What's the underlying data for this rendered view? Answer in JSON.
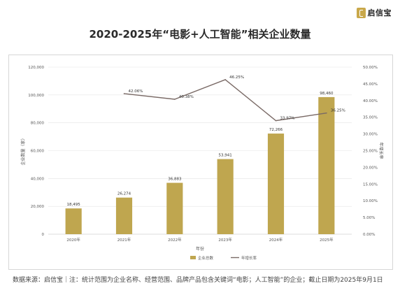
{
  "brand": {
    "name": "启信宝",
    "logo_icon": "qixinbao-logo-icon"
  },
  "title": "2020-2025年“电影+人工智能”相关企业数量",
  "footnote": "数据来源：启信宝｜注：统计范围为企业名称、经营范围、品牌产品包含关键词“电影；人工智能”的企业；截止日期为2025年9月1日",
  "chart_data": {
    "type": "bar",
    "categories": [
      "2020年",
      "2021年",
      "2022年",
      "2023年",
      "2024年",
      "2025年"
    ],
    "series": [
      {
        "name": "企业总数",
        "type": "bar",
        "axis": "left",
        "values": [
          18495,
          26274,
          36883,
          53941,
          72266,
          98460
        ],
        "labels": [
          "18,495",
          "26,274",
          "36,883",
          "53,941",
          "72,266",
          "98,460"
        ],
        "color": "#bfa64f"
      },
      {
        "name": "年增长率",
        "type": "line",
        "axis": "right",
        "values": [
          null,
          42.06,
          40.38,
          46.25,
          33.97,
          36.25
        ],
        "labels": [
          "",
          "42.06%",
          "40.38%",
          "46.25%",
          "33.97%",
          "36.25%"
        ],
        "color": "#7a6a66"
      }
    ],
    "xlabel": "年份",
    "ylabel": "企业数量（家）",
    "y2label": "年增长率",
    "ylim": [
      0,
      120000
    ],
    "y2lim": [
      0,
      50
    ],
    "yticks": [
      "0",
      "20,000",
      "40,000",
      "60,000",
      "80,000",
      "100,000",
      "120,000"
    ],
    "y2ticks": [
      "0.00%",
      "5.00%",
      "10.00%",
      "15.00%",
      "20.00%",
      "25.00%",
      "30.00%",
      "35.00%",
      "40.00%",
      "45.00%",
      "50.00%"
    ],
    "grid": true,
    "legend": "bottom-right"
  }
}
